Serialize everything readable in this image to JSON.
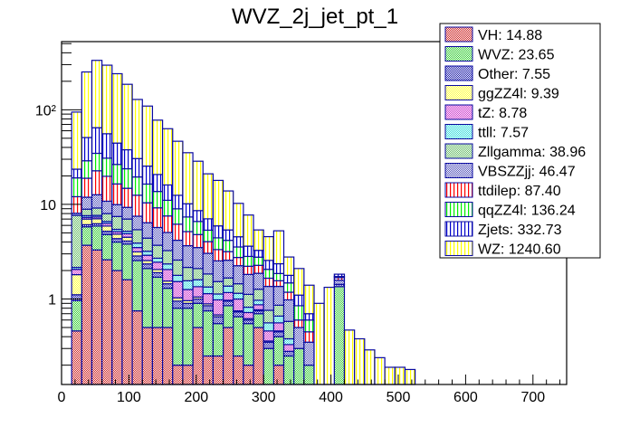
{
  "chart_data": {
    "type": "bar",
    "stacked": true,
    "title": "WVZ_2j_jet_pt_1",
    "xlabel": "",
    "ylabel": "",
    "xlim": [
      0,
      750
    ],
    "ylim": [
      0.125,
      525
    ],
    "yscale": "log",
    "bin_width": 15,
    "x_ticks": [
      0,
      100,
      200,
      300,
      400,
      500,
      600,
      700
    ],
    "x_tick_labels": [
      "0",
      "100",
      "200",
      "300",
      "400",
      "500",
      "600",
      "700"
    ],
    "y_ticks": [
      1,
      10,
      100
    ],
    "y_tick_labels": [
      "1",
      "10",
      "10²"
    ],
    "legend_position": "top-right",
    "legend": [
      {
        "name": "VH",
        "label": "VH: 14.88",
        "fill": "#d94a4a",
        "pattern": "checker",
        "color": "#cc2222"
      },
      {
        "name": "WVZ",
        "label": "WVZ: 23.65",
        "fill": "#66dd66",
        "pattern": "checker",
        "color": "#33cc33"
      },
      {
        "name": "Other",
        "label": "Other: 7.55",
        "fill": "#3333cc",
        "pattern": "checker",
        "color": "#1a1aa8"
      },
      {
        "name": "ggZZ4l",
        "label": "ggZZ4l: 9.39",
        "fill": "#ffff66",
        "pattern": "checker",
        "color": "#ffff33"
      },
      {
        "name": "tZ",
        "label": "tZ: 8.78",
        "fill": "#dd55dd",
        "pattern": "checker",
        "color": "#cc33cc"
      },
      {
        "name": "ttll",
        "label": "ttll: 7.57",
        "fill": "#66eeee",
        "pattern": "checker",
        "color": "#33dddd"
      },
      {
        "name": "Zllgamma",
        "label": "Zllgamma: 38.96",
        "fill": "#88cc88",
        "pattern": "checker",
        "color": "#66bb66"
      },
      {
        "name": "VBSZZjj",
        "label": "VBSZZjj: 46.47",
        "fill": "#7777cc",
        "pattern": "checker",
        "color": "#5555bb"
      },
      {
        "name": "ttdilep",
        "label": "ttdilep: 87.40",
        "fill": "#ff0000",
        "pattern": "vlines",
        "color": "#ff0000"
      },
      {
        "name": "qqZZ4l",
        "label": "qqZZ4l: 136.24",
        "fill": "#00ee00",
        "pattern": "vlines",
        "color": "#00ee00"
      },
      {
        "name": "Zjets",
        "label": "Zjets: 332.73",
        "fill": "#0000cc",
        "pattern": "vlines",
        "color": "#0000cc"
      },
      {
        "name": "WZ",
        "label": "WZ: 1240.60",
        "fill": "#ffff00",
        "pattern": "vlines",
        "color": "#ffff00"
      }
    ],
    "bin_edges_start": [
      15,
      30,
      45,
      60,
      75,
      90,
      105,
      120,
      135,
      150,
      165,
      180,
      195,
      210,
      225,
      240,
      255,
      270,
      285,
      300,
      315,
      330,
      345,
      360,
      375,
      390,
      405,
      420,
      435,
      450,
      465,
      480,
      495,
      510,
      525,
      540,
      555,
      570
    ],
    "series": [
      {
        "name": "VH",
        "values": [
          0.46,
          3.7,
          3.3,
          2.6,
          2.0,
          1.6,
          0.75,
          0.5,
          0.5,
          0.5,
          0.2,
          0.2,
          0.5,
          0.25,
          0.25,
          0.5,
          0.25,
          0.2,
          0.5,
          0,
          0.2,
          0,
          0,
          0,
          0,
          0,
          0,
          0,
          0,
          0,
          0,
          0,
          0,
          0,
          0,
          0,
          0,
          0
        ]
      },
      {
        "name": "WVZ",
        "values": [
          0.5,
          2.1,
          2.6,
          2.2,
          2.0,
          2.2,
          1.8,
          1.6,
          1.2,
          0.8,
          0.6,
          0.6,
          0.4,
          0.5,
          0.3,
          0.35,
          0.4,
          0.35,
          0.2,
          0.3,
          0.2,
          0.25,
          0.3,
          0.2,
          0,
          0,
          1.35,
          0,
          0,
          0,
          0,
          0,
          0,
          0,
          0,
          0,
          0,
          0
        ]
      },
      {
        "name": "Other",
        "values": [
          0.15,
          0.3,
          0.35,
          0.4,
          0.35,
          0.3,
          0.3,
          0.25,
          0.2,
          0.15,
          0.15,
          0.1,
          0.1,
          0.1,
          0.1,
          0.1,
          0.08,
          0.05,
          0.05,
          0.05,
          0.05,
          0.03,
          0,
          0,
          0,
          0,
          0.08,
          0.02,
          0,
          0,
          0,
          0,
          0,
          0,
          0,
          0,
          0.01,
          0
        ]
      },
      {
        "name": "ggZZ4l",
        "values": [
          0.7,
          0.9,
          0.8,
          0.7,
          0.5,
          0.4,
          0.3,
          0.2,
          0.15,
          0.1,
          0.08,
          0.06,
          0.05,
          0.04,
          0.03,
          0.02,
          0.02,
          0.02,
          0.02,
          0.01,
          0.01,
          0,
          0,
          0,
          0,
          0,
          0,
          0,
          0,
          0,
          0,
          0,
          0,
          0,
          0,
          0,
          0,
          0
        ]
      },
      {
        "name": "tZ",
        "values": [
          0.25,
          0.3,
          0.3,
          0.4,
          0.3,
          0.4,
          0.35,
          0.35,
          0.4,
          0.5,
          0.5,
          0.3,
          0.3,
          0.25,
          0.3,
          0.2,
          0.25,
          0.1,
          0.1,
          0.1,
          0.1,
          0.05,
          0,
          0,
          0,
          0,
          0,
          0,
          0,
          0,
          0,
          0,
          0,
          0,
          0,
          0,
          0,
          0
        ]
      },
      {
        "name": "ttll",
        "values": [
          0.1,
          0.3,
          0.3,
          0.3,
          0.3,
          0.3,
          0.4,
          0.3,
          0.25,
          0.3,
          0.25,
          0.3,
          0.25,
          0.2,
          0.15,
          0.2,
          0.15,
          0.1,
          0.1,
          0.1,
          0.1,
          0.05,
          0,
          0,
          0,
          0,
          0,
          0,
          0,
          0,
          0,
          0,
          0,
          0,
          0,
          0,
          0,
          0
        ]
      },
      {
        "name": "Zllgamma",
        "values": [
          5.5,
          1.3,
          1.5,
          1.4,
          2.0,
          1.8,
          1.5,
          1.2,
          1.0,
          0.9,
          0.8,
          0.6,
          0.5,
          0.5,
          0.4,
          0.3,
          0.3,
          0.3,
          0.3,
          0.2,
          0.2,
          0.2,
          0,
          0,
          0,
          0,
          0,
          0,
          0,
          0,
          0,
          0,
          0,
          0,
          0,
          0,
          0,
          0
        ]
      },
      {
        "name": "VBSZZjj",
        "values": [
          0.4,
          3.0,
          3.5,
          2.8,
          2.5,
          2.3,
          2.1,
          2.0,
          2.0,
          1.8,
          1.6,
          1.5,
          1.4,
          1.2,
          1.0,
          0.9,
          0.8,
          0.7,
          0.6,
          0.6,
          0.5,
          0.4,
          0.2,
          0.15,
          0.1,
          0,
          0.15,
          0,
          0,
          0,
          0,
          0,
          0,
          0,
          0,
          0,
          0,
          0
        ]
      },
      {
        "name": "ttdilep",
        "values": [
          4.0,
          7.0,
          10,
          9.0,
          6.5,
          5.5,
          5.0,
          4.0,
          3.5,
          2.5,
          2.0,
          1.5,
          1.3,
          1.0,
          0.8,
          0.6,
          0.5,
          0.4,
          0.4,
          0.3,
          0.2,
          0.2,
          0.1,
          0.1,
          0,
          0,
          0.1,
          0,
          0,
          0,
          0,
          0,
          0,
          0,
          0,
          0,
          0,
          0
        ]
      },
      {
        "name": "qqZZ4l",
        "values": [
          7.0,
          10,
          12,
          11,
          10,
          9.0,
          7.0,
          6.0,
          4.5,
          3.5,
          2.8,
          2.2,
          1.8,
          1.3,
          1.1,
          1.0,
          0.8,
          0.6,
          0.5,
          0.4,
          0.3,
          0.3,
          0.25,
          0.15,
          0,
          0,
          0.05,
          0,
          0,
          0,
          0,
          0,
          0,
          0,
          0,
          0,
          0,
          0
        ]
      },
      {
        "name": "Zjets",
        "values": [
          4.5,
          22,
          30,
          25,
          18,
          14,
          11,
          9.0,
          7.0,
          5.0,
          3.5,
          2.8,
          2.0,
          1.7,
          1.5,
          1.2,
          1.0,
          0.8,
          0.5,
          0.5,
          0.5,
          0.3,
          0.25,
          0.1,
          0,
          0,
          0.1,
          0.05,
          0,
          0,
          0,
          0,
          0,
          0,
          0,
          0,
          0.02,
          0
        ]
      },
      {
        "name": "WZ",
        "values": [
          71,
          200,
          268,
          240,
          196,
          148,
          98,
          84,
          57,
          47,
          34,
          25,
          20,
          14,
          12,
          8.5,
          5.7,
          4.1,
          2.1,
          2.0,
          2.9,
          1.0,
          1.0,
          0.7,
          0.8,
          1.33,
          0,
          0.4,
          0.38,
          0.29,
          0.24,
          0.19,
          0.19,
          0.18,
          0,
          0,
          0,
          0
        ]
      }
    ]
  }
}
